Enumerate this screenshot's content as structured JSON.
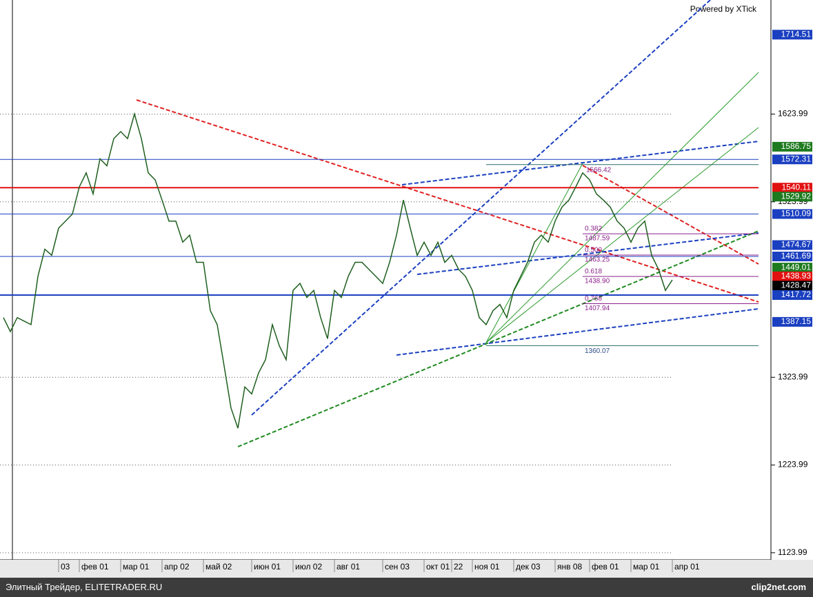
{
  "chart_data": {
    "type": "line",
    "credit": "Powered by XTick",
    "categories": [
      null,
      null,
      null,
      null,
      null,
      null,
      null,
      null,
      "03",
      null,
      null,
      "фев 01",
      null,
      null,
      null,
      null,
      null,
      "мар 01",
      null,
      null,
      null,
      null,
      null,
      "апр 02",
      null,
      null,
      null,
      null,
      null,
      "май 02",
      null,
      null,
      null,
      null,
      null,
      null,
      "июн 01",
      null,
      null,
      null,
      null,
      null,
      "июл 02",
      null,
      null,
      null,
      null,
      null,
      "авг 01",
      null,
      null,
      null,
      null,
      null,
      null,
      "сен 03",
      null,
      null,
      null,
      null,
      null,
      "окт 01",
      null,
      null,
      null,
      "22",
      null,
      null,
      "ноя 01",
      null,
      null,
      null,
      null,
      null,
      "дек 03",
      null,
      null,
      null,
      null,
      null,
      "янв 08",
      null,
      null,
      null,
      null,
      "фев 01",
      null,
      null,
      null,
      null,
      null,
      "мар 01",
      null,
      null,
      null,
      null,
      null,
      "апр 01"
    ],
    "series": [
      {
        "color": "#1d5e1d",
        "values": [
          1392,
          1376,
          1392,
          1388,
          1384,
          1439,
          1470,
          1463,
          1494,
          1502,
          1510,
          1541,
          1557,
          1533,
          1573,
          1565,
          1596,
          1604,
          1596,
          1624,
          1596,
          1557,
          1549,
          1526,
          1502,
          1502,
          1478,
          1486,
          1455,
          1455,
          1400,
          1384,
          1337,
          1289,
          1266,
          1313,
          1305,
          1329,
          1344,
          1384,
          1360,
          1344,
          1423,
          1431,
          1415,
          1423,
          1392,
          1368,
          1423,
          1415,
          1439,
          1455,
          1455,
          1447,
          1439,
          1431,
          1455,
          1486,
          1526,
          1494,
          1463,
          1478,
          1463,
          1478,
          1455,
          1463,
          1447,
          1439,
          1423,
          1392,
          1384,
          1400,
          1407,
          1392,
          1423,
          1439,
          1455,
          1478,
          1486,
          1478,
          1502,
          1518,
          1526,
          1541,
          1557,
          1549,
          1533,
          1526,
          1518,
          1502,
          1494,
          1478,
          1494,
          1502,
          1463,
          1447,
          1423,
          1435
        ]
      }
    ],
    "ylim": [
      1116,
      1754
    ],
    "yticks": [
      1123.99,
      1223.99,
      1323.99,
      1523.99,
      1623.99
    ],
    "grid": true,
    "levels": [
      {
        "value": 1714.51,
        "color": "#1a3fc0",
        "line": false
      },
      {
        "value": 1586.75,
        "color": "#1e7a1e",
        "line": false
      },
      {
        "value": 1572.31,
        "color": "#1a3fc0",
        "line": true
      },
      {
        "value": 1540.11,
        "color": "#e01010",
        "line": true
      },
      {
        "value": 1529.92,
        "color": "#1e7a1e",
        "line": false
      },
      {
        "value": 1510.09,
        "color": "#1a3fc0",
        "line": true
      },
      {
        "value": 1474.67,
        "color": "#1a3fc0",
        "line": false
      },
      {
        "value": 1461.69,
        "color": "#1a3fc0",
        "line": true
      },
      {
        "value": 1449.01,
        "color": "#1e7a1e",
        "line": false
      },
      {
        "value": 1438.93,
        "color": "#e01010",
        "line": false
      },
      {
        "value": 1428.47,
        "color": "#000000",
        "line": false
      },
      {
        "value": 1417.72,
        "color": "#1a3fc0",
        "line": true
      },
      {
        "value": 1387.15,
        "color": "#1a3fc0",
        "line": false
      }
    ],
    "fib": [
      {
        "ratio": "0.382",
        "value": 1487.59
      },
      {
        "ratio": "0.500",
        "value": 1463.25
      },
      {
        "ratio": "0.618",
        "value": {
          "value": 1438.9,
          "label": "1438.90"
        }
      },
      {
        "ratio": "0.768",
        "value": 1407.94
      }
    ],
    "fib_low": 1360.07,
    "fib_high": 1566.42
  },
  "footer": {
    "left": "Элитный Трейдер, ELITETRADER.RU",
    "right": "clip2net.com"
  }
}
